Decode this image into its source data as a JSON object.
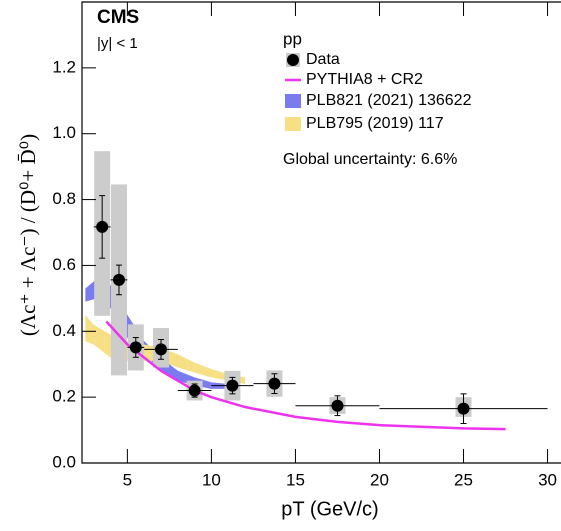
{
  "chart_data": {
    "type": "scatter",
    "title": "CMS",
    "subtitle": "|y| < 1",
    "legend_title": "pp",
    "annotation": "Global uncertainty: 6.6%",
    "xlabel": "pT (GeV/c)",
    "ylabel": "(Λc⁺ + Λc⁻) / (D⁰+ D̄⁰)",
    "xlim": [
      2.3,
      30.8
    ],
    "ylim": [
      0,
      1.4
    ],
    "xticks": [
      5,
      10,
      15,
      20,
      25,
      30
    ],
    "yticks": [
      {
        "value": 0,
        "label": "0.0"
      },
      0.2,
      0.4,
      0.6,
      0.8,
      {
        "value": 1,
        "label": "1.0"
      },
      1.2
    ],
    "data": {
      "name": "Data",
      "color": "#000000",
      "syst_color": "#cccccc",
      "x": [
        3.5,
        4.5,
        5.5,
        7,
        9,
        11.25,
        13.75,
        17.5,
        25
      ],
      "values": [
        0.717,
        0.556,
        0.351,
        0.345,
        0.22,
        0.235,
        0.241,
        0.174,
        0.165
      ],
      "xerr": [
        0.5,
        0.5,
        0.5,
        1,
        1,
        1.25,
        1.25,
        2.5,
        5
      ],
      "stat_err": [
        0.095,
        0.045,
        0.03,
        0.03,
        0.02,
        0.025,
        0.03,
        0.03,
        0.045
      ],
      "syst_low": [
        0.27,
        0.29,
        0.07,
        0.055,
        0.03,
        0.045,
        0.04,
        0.025,
        0.025
      ],
      "syst_high": [
        0.23,
        0.29,
        0.07,
        0.065,
        0.03,
        0.045,
        0.04,
        0.026,
        0.035
      ]
    },
    "curve": {
      "name": "PYTHIA8 + CR2",
      "color": "#ee33ee",
      "x": [
        3.75,
        5,
        7,
        9,
        10,
        12,
        15,
        17.5,
        20,
        25,
        27.5
      ],
      "values": [
        0.43,
        0.36,
        0.28,
        0.22,
        0.2,
        0.17,
        0.14,
        0.125,
        0.115,
        0.105,
        0.103
      ]
    },
    "bands": [
      {
        "name": "PLB821 (2021) 136622",
        "color": "#7b7bf0",
        "x": [
          2.5,
          3.2,
          4,
          5,
          6,
          7,
          8,
          9,
          10,
          11
        ],
        "upper": [
          0.53,
          0.56,
          0.54,
          0.45,
          0.37,
          0.32,
          0.28,
          0.26,
          0.245,
          0.24
        ],
        "lower": [
          0.49,
          0.5,
          0.47,
          0.38,
          0.33,
          0.28,
          0.25,
          0.235,
          0.225,
          0.225
        ]
      },
      {
        "name": "PLB795 (2019) 117",
        "color": "#f7df85",
        "x": [
          2.5,
          3,
          4,
          5,
          6,
          7,
          8,
          9,
          10,
          11,
          12
        ],
        "upper": [
          0.45,
          0.42,
          0.39,
          0.37,
          0.36,
          0.35,
          0.33,
          0.305,
          0.285,
          0.27,
          0.26
        ],
        "lower": [
          0.37,
          0.36,
          0.32,
          0.31,
          0.31,
          0.31,
          0.29,
          0.275,
          0.26,
          0.25,
          0.24
        ]
      }
    ]
  }
}
